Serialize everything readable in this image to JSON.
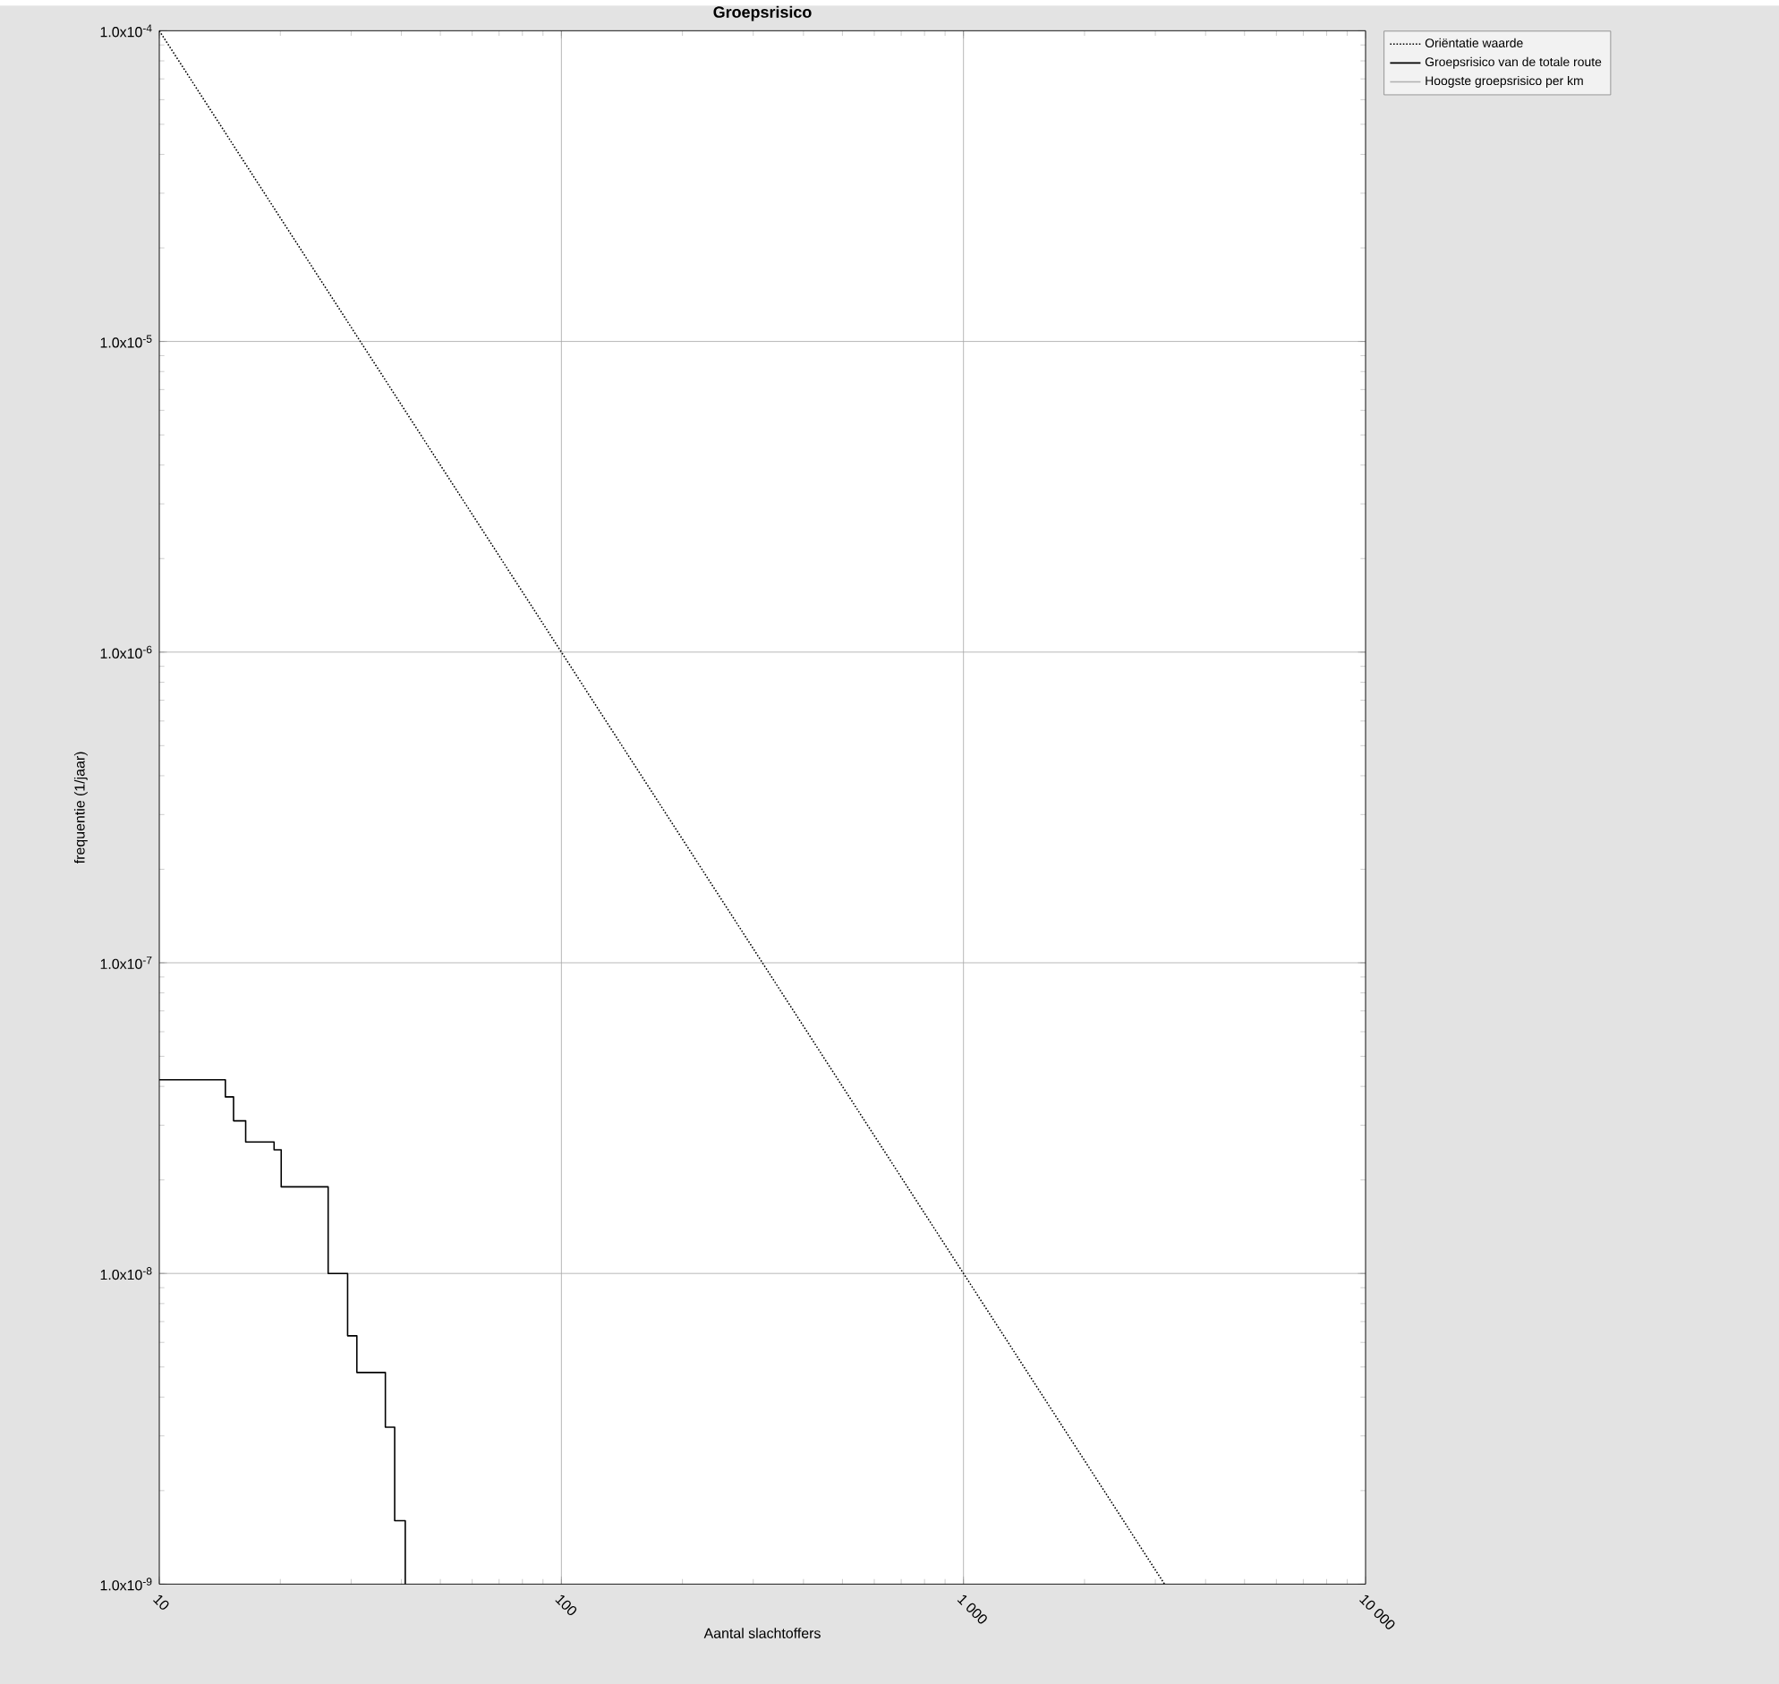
{
  "chart_data": {
    "type": "line",
    "title": "Groepsrisico",
    "xlabel": "Aantal slachtoffers",
    "ylabel": "frequentie (1/jaar)",
    "log": "xy",
    "grid": true,
    "legend": "top right",
    "marker": "none",
    "xlim": [
      10,
      10000
    ],
    "xticks": [
      10,
      100,
      {
        "value": 1000,
        "label": "1 000"
      },
      {
        "value": 10000,
        "label": "10 000"
      }
    ],
    "ylim": [
      1e-09,
      0.0001
    ],
    "yticks": [
      {
        "value": 1e-09,
        "label": "1.0x10$^{-9}$"
      },
      {
        "value": 1e-08,
        "label": "1.0x10$^{-8}$"
      },
      {
        "value": 1e-07,
        "label": "1.0x10$^{-7}$"
      },
      {
        "value": 1e-06,
        "label": "1.0x10$^{-6}$"
      },
      {
        "value": 1e-05,
        "label": "1.0x10$^{-5}$"
      },
      {
        "value": 0.0001,
        "label": "1.0x10$^{-4}$"
      }
    ],
    "series": [
      {
        "name": "Oriëntatie waarde",
        "color": "#000000",
        "line_style": "dotted",
        "x": [
          10,
          3162
        ],
        "values": [
          0.0001,
          1e-09
        ]
      },
      {
        "name": "Groepsrisico van de totale route",
        "color": "#000000",
        "type": "step",
        "line_style": "solid",
        "x": [
          10,
          14.6,
          15.3,
          16.4,
          19.3,
          20.1,
          26.3,
          29.4,
          31,
          36.5,
          38.5,
          40.9
        ],
        "values": [
          4.2e-08,
          3.7e-08,
          3.1e-08,
          2.65e-08,
          2.5e-08,
          1.9e-08,
          1e-08,
          6.3e-09,
          4.8e-09,
          3.2e-09,
          1.6e-09,
          1e-09
        ]
      },
      {
        "name": "Hoogste groepsrisico per km",
        "color": "#b0b0b0",
        "line_style": "solid"
      }
    ]
  }
}
